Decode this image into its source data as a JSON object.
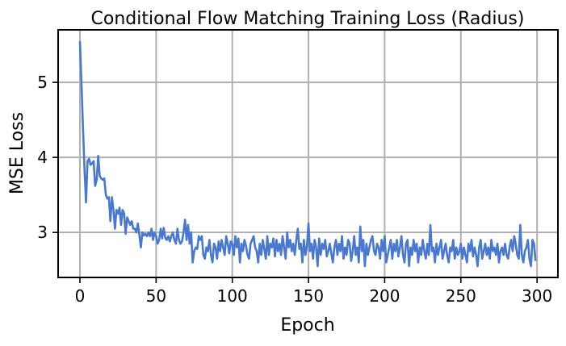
{
  "chart_data": {
    "type": "line",
    "title": "Conditional Flow Matching Training Loss (Radius)",
    "xlabel": "Epoch",
    "ylabel": "MSE Loss",
    "xlim": [
      -14.3,
      313.7
    ],
    "ylim": [
      2.4,
      5.7
    ],
    "xticks": [
      0,
      50,
      100,
      150,
      200,
      250,
      300
    ],
    "yticks": [
      3,
      4,
      5
    ],
    "grid": true,
    "line_color": "#4878d0",
    "grid_color": "#b0b0b0",
    "series": [
      {
        "values": [
          5.55,
          5.0,
          4.4,
          3.85,
          3.4,
          3.95,
          3.98,
          3.9,
          3.92,
          3.95,
          3.62,
          3.7,
          4.02,
          3.75,
          3.72,
          3.7,
          3.72,
          3.5,
          3.45,
          3.47,
          3.15,
          3.47,
          3.3,
          3.05,
          3.3,
          3.25,
          3.33,
          3.1,
          3.3,
          3.25,
          2.98,
          3.2,
          3.15,
          3.1,
          3.15,
          3.05,
          3.05,
          3.0,
          3.12,
          2.97,
          2.8,
          3.0,
          2.96,
          2.98,
          2.95,
          3.0,
          2.95,
          3.05,
          2.9,
          3.0,
          2.95,
          2.85,
          2.9,
          3.05,
          2.92,
          3.06,
          2.93,
          2.9,
          2.95,
          2.88,
          2.95,
          3.0,
          2.9,
          2.85,
          3.05,
          2.9,
          2.85,
          2.88,
          3.0,
          3.17,
          2.9,
          3.1,
          2.85,
          3.0,
          2.6,
          2.75,
          2.8,
          2.78,
          2.95,
          2.9,
          2.95,
          2.7,
          2.65,
          2.8,
          2.75,
          2.9,
          2.7,
          2.6,
          2.85,
          2.8,
          2.65,
          2.88,
          2.75,
          2.9,
          2.8,
          2.7,
          2.95,
          2.85,
          2.72,
          2.88,
          2.85,
          2.7,
          2.95,
          2.8,
          2.92,
          2.6,
          2.85,
          2.75,
          2.9,
          2.82,
          2.7,
          2.65,
          2.85,
          2.9,
          2.95,
          2.8,
          2.75,
          2.6,
          2.85,
          2.7,
          2.9,
          2.78,
          2.65,
          2.95,
          2.7,
          2.85,
          2.8,
          2.92,
          2.68,
          2.9,
          2.75,
          2.85,
          2.7,
          2.95,
          2.8,
          2.65,
          3.0,
          2.8,
          2.9,
          2.75,
          2.85,
          2.7,
          2.9,
          3.05,
          2.78,
          2.85,
          2.6,
          2.9,
          2.7,
          2.82,
          3.12,
          2.75,
          2.85,
          2.65,
          2.9,
          2.8,
          2.55,
          2.92,
          2.7,
          2.85,
          2.78,
          2.9,
          2.68,
          2.75,
          2.85,
          2.72,
          2.6,
          2.8,
          2.9,
          2.7,
          2.85,
          2.75,
          2.95,
          2.65,
          2.8,
          2.7,
          2.9,
          2.85,
          2.62,
          2.75,
          2.95,
          2.7,
          2.8,
          2.6,
          3.08,
          2.75,
          2.9,
          2.55,
          2.85,
          2.7,
          2.8,
          2.9,
          2.95,
          2.75,
          2.7,
          2.85,
          2.8,
          2.65,
          2.9,
          2.75,
          2.95,
          2.6,
          2.7,
          2.8,
          2.9,
          2.65,
          2.85,
          2.75,
          2.9,
          2.68,
          2.8,
          2.95,
          2.7,
          2.6,
          2.85,
          2.9,
          2.55,
          2.8,
          2.7,
          2.9,
          2.75,
          2.85,
          2.6,
          2.8,
          2.7,
          2.9,
          2.75,
          2.65,
          2.85,
          2.7,
          3.1,
          2.75,
          2.8,
          2.6,
          2.85,
          2.7,
          2.8,
          2.9,
          2.65,
          2.75,
          2.85,
          2.7,
          2.6,
          2.8,
          2.75,
          2.9,
          2.65,
          2.8,
          2.7,
          2.75,
          2.85,
          2.65,
          2.8,
          2.7,
          2.6,
          2.85,
          2.75,
          2.9,
          2.68,
          2.8,
          2.7,
          2.55,
          2.8,
          2.9,
          2.65,
          2.75,
          2.85,
          2.7,
          2.8,
          2.65,
          2.9,
          2.75,
          2.8,
          2.7,
          2.85,
          2.6,
          2.75,
          2.8,
          2.7,
          2.85,
          2.7,
          2.65,
          2.8,
          2.9,
          2.75,
          2.95,
          2.85,
          2.7,
          2.65,
          3.1,
          2.7,
          2.6,
          2.75,
          2.8,
          2.9,
          2.65,
          2.55,
          2.9,
          2.85,
          2.62
        ]
      }
    ]
  }
}
